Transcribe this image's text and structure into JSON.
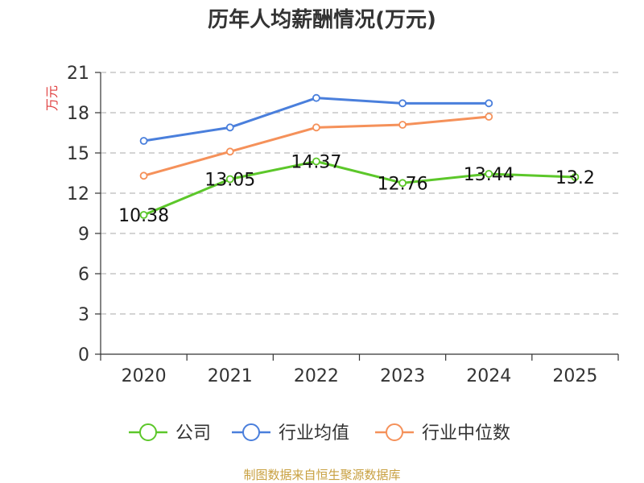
{
  "colors": {
    "company": "#5cc72a",
    "industry_avg": "#4a7fdc",
    "industry_median": "#f5915a",
    "grid": "#bbbbbb",
    "axis": "#333333",
    "ylabel": "#e04040",
    "source": "#c8a040"
  },
  "chart_data": {
    "type": "line",
    "title": "历年人均薪酬情况(万元)",
    "ylabel": "万元",
    "xlabel": "",
    "categories": [
      "2020",
      "2021",
      "2022",
      "2023",
      "2024",
      "2025"
    ],
    "ylim": [
      0,
      21
    ],
    "yticks": [
      0,
      3,
      6,
      9,
      12,
      15,
      18,
      21
    ],
    "grid": true,
    "legend_position": "bottom",
    "series": [
      {
        "name": "公司",
        "key": "company",
        "values": [
          10.38,
          13.05,
          14.37,
          12.76,
          13.44,
          13.2
        ],
        "labels": [
          "10.38",
          "13.05",
          "14.37",
          "12.76",
          "13.44",
          "13.2"
        ]
      },
      {
        "name": "行业均值",
        "key": "industry_avg",
        "values": [
          15.9,
          16.9,
          19.1,
          18.7,
          18.7,
          null
        ]
      },
      {
        "name": "行业中位数",
        "key": "industry_median",
        "values": [
          13.3,
          15.1,
          16.9,
          17.1,
          17.7,
          null
        ]
      }
    ],
    "source": "制图数据来自恒生聚源数据库"
  }
}
